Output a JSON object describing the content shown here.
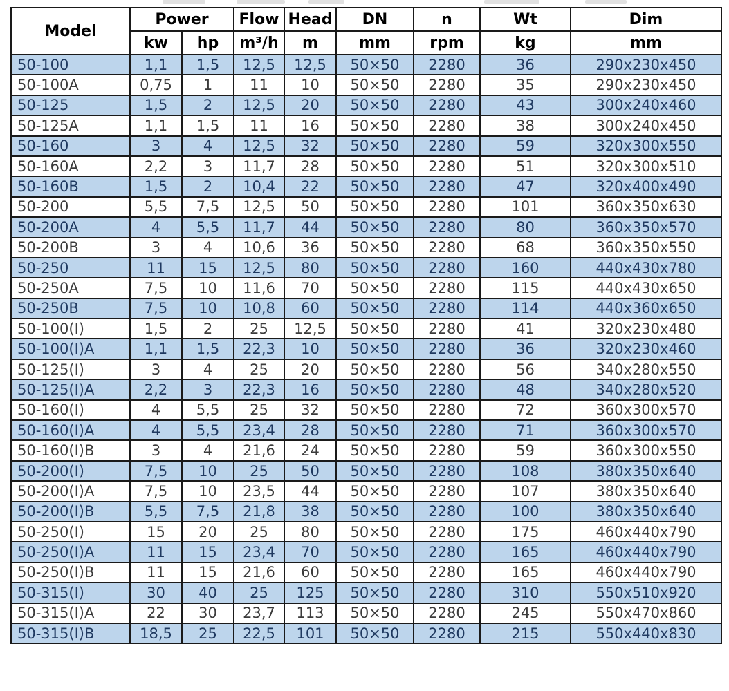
{
  "colors": {
    "row_stripe_bg": "#bdd5ec",
    "row_stripe_text": "#1f3960",
    "row_plain_bg": "#ffffff",
    "row_plain_text": "#3b3b3b",
    "header_text": "#000000",
    "grid_border": "#1a1a1a"
  },
  "table": {
    "header": {
      "model": "Model",
      "power": "Power",
      "kw": "kw",
      "hp": "hp",
      "flow": "Flow",
      "flow_unit": "m³/h",
      "head": "Head",
      "head_unit": "m",
      "dn": "DN",
      "dn_unit": "mm",
      "n": "n",
      "n_unit": "rpm",
      "wt": "Wt",
      "wt_unit": "kg",
      "dim": "Dim",
      "dim_unit": "mm"
    },
    "col_names": [
      "model",
      "power-kw",
      "power-hp",
      "flow",
      "head",
      "dn",
      "n-rpm",
      "wt",
      "dim"
    ],
    "rows": [
      [
        "50-100",
        "1,1",
        "1,5",
        "12,5",
        "12,5",
        "50×50",
        "2280",
        "36",
        "290x230x450"
      ],
      [
        "50-100A",
        "0,75",
        "1",
        "11",
        "10",
        "50×50",
        "2280",
        "35",
        "290x230x450"
      ],
      [
        "50-125",
        "1,5",
        "2",
        "12,5",
        "20",
        "50×50",
        "2280",
        "43",
        "300x240x460"
      ],
      [
        "50-125A",
        "1,1",
        "1,5",
        "11",
        "16",
        "50×50",
        "2280",
        "38",
        "300x240x450"
      ],
      [
        "50-160",
        "3",
        "4",
        "12,5",
        "32",
        "50×50",
        "2280",
        "59",
        "320x300x550"
      ],
      [
        "50-160A",
        "2,2",
        "3",
        "11,7",
        "28",
        "50×50",
        "2280",
        "51",
        "320x300x510"
      ],
      [
        "50-160B",
        "1,5",
        "2",
        "10,4",
        "22",
        "50×50",
        "2280",
        "47",
        "320x400x490"
      ],
      [
        "50-200",
        "5,5",
        "7,5",
        "12,5",
        "50",
        "50×50",
        "2280",
        "101",
        "360x350x630"
      ],
      [
        "50-200A",
        "4",
        "5,5",
        "11,7",
        "44",
        "50×50",
        "2280",
        "80",
        "360x350x570"
      ],
      [
        "50-200B",
        "3",
        "4",
        "10,6",
        "36",
        "50×50",
        "2280",
        "68",
        "360x350x550"
      ],
      [
        "50-250",
        "11",
        "15",
        "12,5",
        "80",
        "50×50",
        "2280",
        "160",
        "440x430x780"
      ],
      [
        "50-250A",
        "7,5",
        "10",
        "11,6",
        "70",
        "50×50",
        "2280",
        "115",
        "440x430x650"
      ],
      [
        "50-250B",
        "7,5",
        "10",
        "10,8",
        "60",
        "50×50",
        "2280",
        "114",
        "440x360x650"
      ],
      [
        "50-100(I)",
        "1,5",
        "2",
        "25",
        "12,5",
        "50×50",
        "2280",
        "41",
        "320x230x480"
      ],
      [
        "50-100(I)A",
        "1,1",
        "1,5",
        "22,3",
        "10",
        "50×50",
        "2280",
        "36",
        "320x230x460"
      ],
      [
        "50-125(I)",
        "3",
        "4",
        "25",
        "20",
        "50×50",
        "2280",
        "56",
        "340x280x550"
      ],
      [
        "50-125(I)A",
        "2,2",
        "3",
        "22,3",
        "16",
        "50×50",
        "2280",
        "48",
        "340x280x520"
      ],
      [
        "50-160(I)",
        "4",
        "5,5",
        "25",
        "32",
        "50×50",
        "2280",
        "72",
        "360x300x570"
      ],
      [
        "50-160(I)A",
        "4",
        "5,5",
        "23,4",
        "28",
        "50×50",
        "2280",
        "71",
        "360x300x570"
      ],
      [
        "50-160(I)B",
        "3",
        "4",
        "21,6",
        "24",
        "50×50",
        "2280",
        "59",
        "360x300x550"
      ],
      [
        "50-200(I)",
        "7,5",
        "10",
        "25",
        "50",
        "50×50",
        "2280",
        "108",
        "380x350x640"
      ],
      [
        "50-200(I)A",
        "7,5",
        "10",
        "23,5",
        "44",
        "50×50",
        "2280",
        "107",
        "380x350x640"
      ],
      [
        "50-200(I)B",
        "5,5",
        "7,5",
        "21,8",
        "38",
        "50×50",
        "2280",
        "100",
        "380x350x640"
      ],
      [
        "50-250(I)",
        "15",
        "20",
        "25",
        "80",
        "50×50",
        "2280",
        "175",
        "460x440x790"
      ],
      [
        "50-250(I)A",
        "11",
        "15",
        "23,4",
        "70",
        "50×50",
        "2280",
        "165",
        "460x440x790"
      ],
      [
        "50-250(I)B",
        "11",
        "15",
        "21,6",
        "60",
        "50×50",
        "2280",
        "165",
        "460x440x790"
      ],
      [
        "50-315(I)",
        "30",
        "40",
        "25",
        "125",
        "50×50",
        "2280",
        "310",
        "550x510x920"
      ],
      [
        "50-315(I)A",
        "22",
        "30",
        "23,7",
        "113",
        "50×50",
        "2280",
        "245",
        "550x470x860"
      ],
      [
        "50-315(I)B",
        "18,5",
        "25",
        "22,5",
        "101",
        "50×50",
        "2280",
        "215",
        "550x440x830"
      ]
    ]
  }
}
